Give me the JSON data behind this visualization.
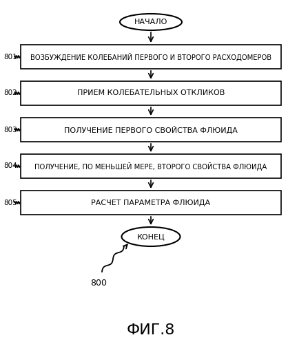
{
  "title": "ФИГ.8",
  "background_color": "#ffffff",
  "start_label": "НАЧАЛО",
  "end_label": "КОНЕЦ",
  "steps": [
    {
      "id": "801",
      "text": "ВОЗБУЖДЕНИЕ КОЛЕБАНИЙ ПЕРВОГО И ВТОРОГО РАСХОДОМЕРОВ"
    },
    {
      "id": "802",
      "text": "ПРИЕМ КОЛЕБАТЕЛЬНЫХ ОТКЛИКОВ"
    },
    {
      "id": "803",
      "text": "ПОЛУЧЕНИЕ ПЕРВОГО СВОЙСТВА ФЛЮИДА"
    },
    {
      "id": "804",
      "text": "ПОЛУЧЕНИЕ, ПО МЕНЬШЕЙ МЕРЕ, ВТОРОГО СВОЙСТВА ФЛЮИДА"
    },
    {
      "id": "805",
      "text": "РАСЧЕТ ПАРАМЕТРА ФЛЮИДА"
    }
  ],
  "box_facecolor": "#ffffff",
  "box_edgecolor": "#000000",
  "text_color": "#000000",
  "arrow_color": "#000000",
  "label_color": "#000000",
  "fig_width": 4.18,
  "fig_height": 5.0,
  "dpi": 100,
  "ref_label": "800"
}
